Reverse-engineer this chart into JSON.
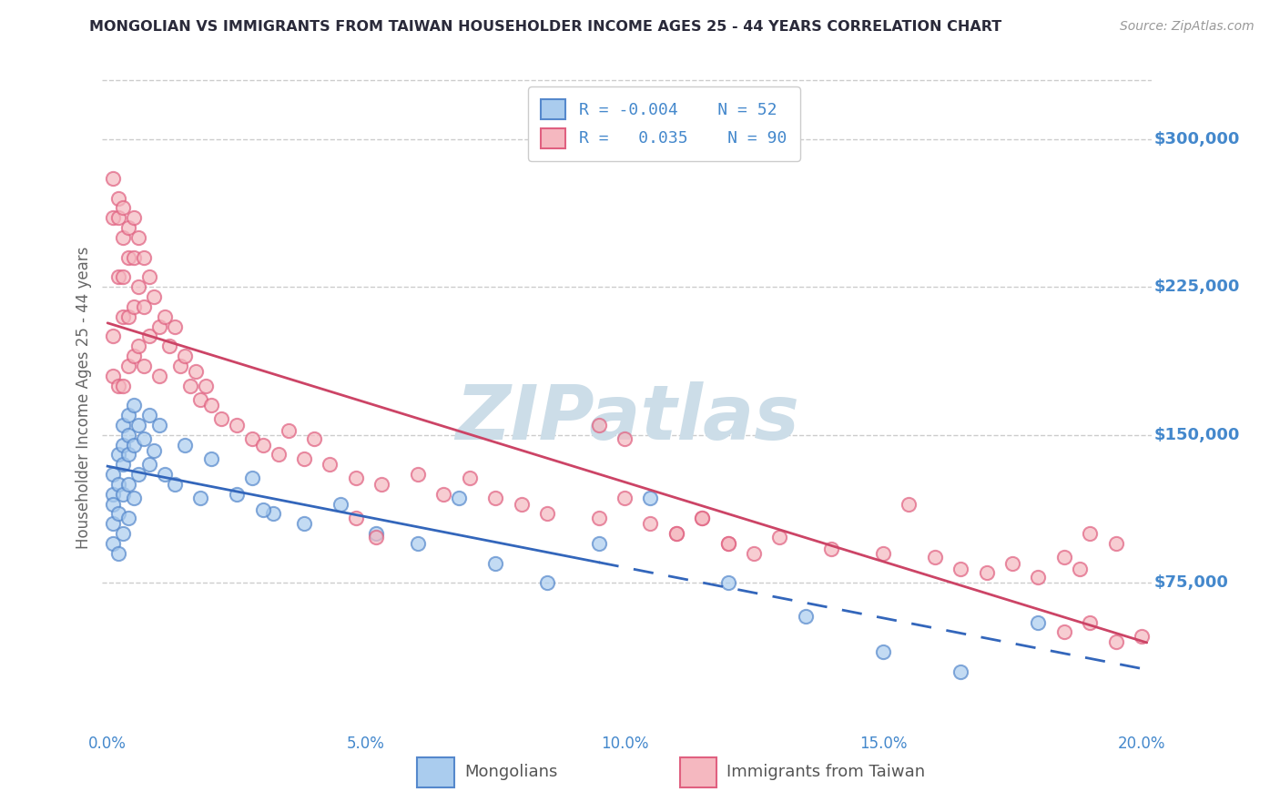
{
  "title": "MONGOLIAN VS IMMIGRANTS FROM TAIWAN HOUSEHOLDER INCOME AGES 25 - 44 YEARS CORRELATION CHART",
  "source": "Source: ZipAtlas.com",
  "ylabel": "Householder Income Ages 25 - 44 years",
  "xlim": [
    -0.001,
    0.202
  ],
  "ylim": [
    0,
    337500
  ],
  "ytick_vals": [
    75000,
    150000,
    225000,
    300000
  ],
  "ytick_labels": [
    "$75,000",
    "$150,000",
    "$225,000",
    "$300,000"
  ],
  "xtick_vals": [
    0.0,
    0.05,
    0.1,
    0.15,
    0.2
  ],
  "xtick_labels": [
    "0.0%",
    "5.0%",
    "10.0%",
    "15.0%",
    "20.0%"
  ],
  "background_color": "#ffffff",
  "grid_color": "#cccccc",
  "mongolian_face": "#aaccee",
  "mongolian_edge": "#5588cc",
  "taiwan_face": "#f5b8c0",
  "taiwan_edge": "#e06080",
  "mongolian_line_color": "#3366bb",
  "taiwan_line_color": "#cc4466",
  "watermark_color": "#ccdde8",
  "axis_label_color": "#4488cc",
  "title_color": "#2a2a3a",
  "legend_text_color": "#4488cc",
  "source_color": "#999999",
  "mongolian_x": [
    0.001,
    0.001,
    0.001,
    0.001,
    0.001,
    0.002,
    0.002,
    0.002,
    0.002,
    0.003,
    0.003,
    0.003,
    0.003,
    0.003,
    0.004,
    0.004,
    0.004,
    0.004,
    0.004,
    0.005,
    0.005,
    0.005,
    0.006,
    0.006,
    0.007,
    0.008,
    0.008,
    0.009,
    0.01,
    0.011,
    0.013,
    0.015,
    0.018,
    0.02,
    0.025,
    0.028,
    0.032,
    0.038,
    0.045,
    0.052,
    0.06,
    0.068,
    0.075,
    0.085,
    0.095,
    0.105,
    0.12,
    0.135,
    0.15,
    0.165,
    0.18,
    0.03
  ],
  "mongolian_y": [
    120000,
    130000,
    115000,
    105000,
    95000,
    140000,
    125000,
    110000,
    90000,
    155000,
    145000,
    135000,
    120000,
    100000,
    160000,
    150000,
    140000,
    125000,
    108000,
    165000,
    145000,
    118000,
    155000,
    130000,
    148000,
    160000,
    135000,
    142000,
    155000,
    130000,
    125000,
    145000,
    118000,
    138000,
    120000,
    128000,
    110000,
    105000,
    115000,
    100000,
    95000,
    118000,
    85000,
    75000,
    95000,
    118000,
    75000,
    58000,
    40000,
    30000,
    55000,
    112000
  ],
  "taiwan_x": [
    0.001,
    0.001,
    0.001,
    0.001,
    0.002,
    0.002,
    0.002,
    0.002,
    0.003,
    0.003,
    0.003,
    0.003,
    0.003,
    0.004,
    0.004,
    0.004,
    0.004,
    0.005,
    0.005,
    0.005,
    0.005,
    0.006,
    0.006,
    0.006,
    0.007,
    0.007,
    0.007,
    0.008,
    0.008,
    0.009,
    0.01,
    0.01,
    0.011,
    0.012,
    0.013,
    0.014,
    0.015,
    0.016,
    0.017,
    0.018,
    0.019,
    0.02,
    0.022,
    0.025,
    0.028,
    0.03,
    0.033,
    0.035,
    0.038,
    0.04,
    0.043,
    0.048,
    0.053,
    0.06,
    0.065,
    0.07,
    0.075,
    0.08,
    0.085,
    0.095,
    0.1,
    0.105,
    0.11,
    0.115,
    0.12,
    0.13,
    0.14,
    0.15,
    0.155,
    0.16,
    0.165,
    0.17,
    0.175,
    0.18,
    0.185,
    0.188,
    0.048,
    0.052,
    0.095,
    0.1,
    0.11,
    0.115,
    0.12,
    0.125,
    0.185,
    0.19,
    0.195,
    0.2,
    0.19,
    0.195
  ],
  "taiwan_y": [
    280000,
    260000,
    200000,
    180000,
    270000,
    260000,
    230000,
    175000,
    265000,
    250000,
    230000,
    210000,
    175000,
    255000,
    240000,
    210000,
    185000,
    260000,
    240000,
    215000,
    190000,
    250000,
    225000,
    195000,
    240000,
    215000,
    185000,
    230000,
    200000,
    220000,
    205000,
    180000,
    210000,
    195000,
    205000,
    185000,
    190000,
    175000,
    182000,
    168000,
    175000,
    165000,
    158000,
    155000,
    148000,
    145000,
    140000,
    152000,
    138000,
    148000,
    135000,
    128000,
    125000,
    130000,
    120000,
    128000,
    118000,
    115000,
    110000,
    108000,
    118000,
    105000,
    100000,
    108000,
    95000,
    98000,
    92000,
    90000,
    115000,
    88000,
    82000,
    80000,
    85000,
    78000,
    88000,
    82000,
    108000,
    98000,
    155000,
    148000,
    100000,
    108000,
    95000,
    90000,
    50000,
    55000,
    45000,
    48000,
    100000,
    95000
  ]
}
